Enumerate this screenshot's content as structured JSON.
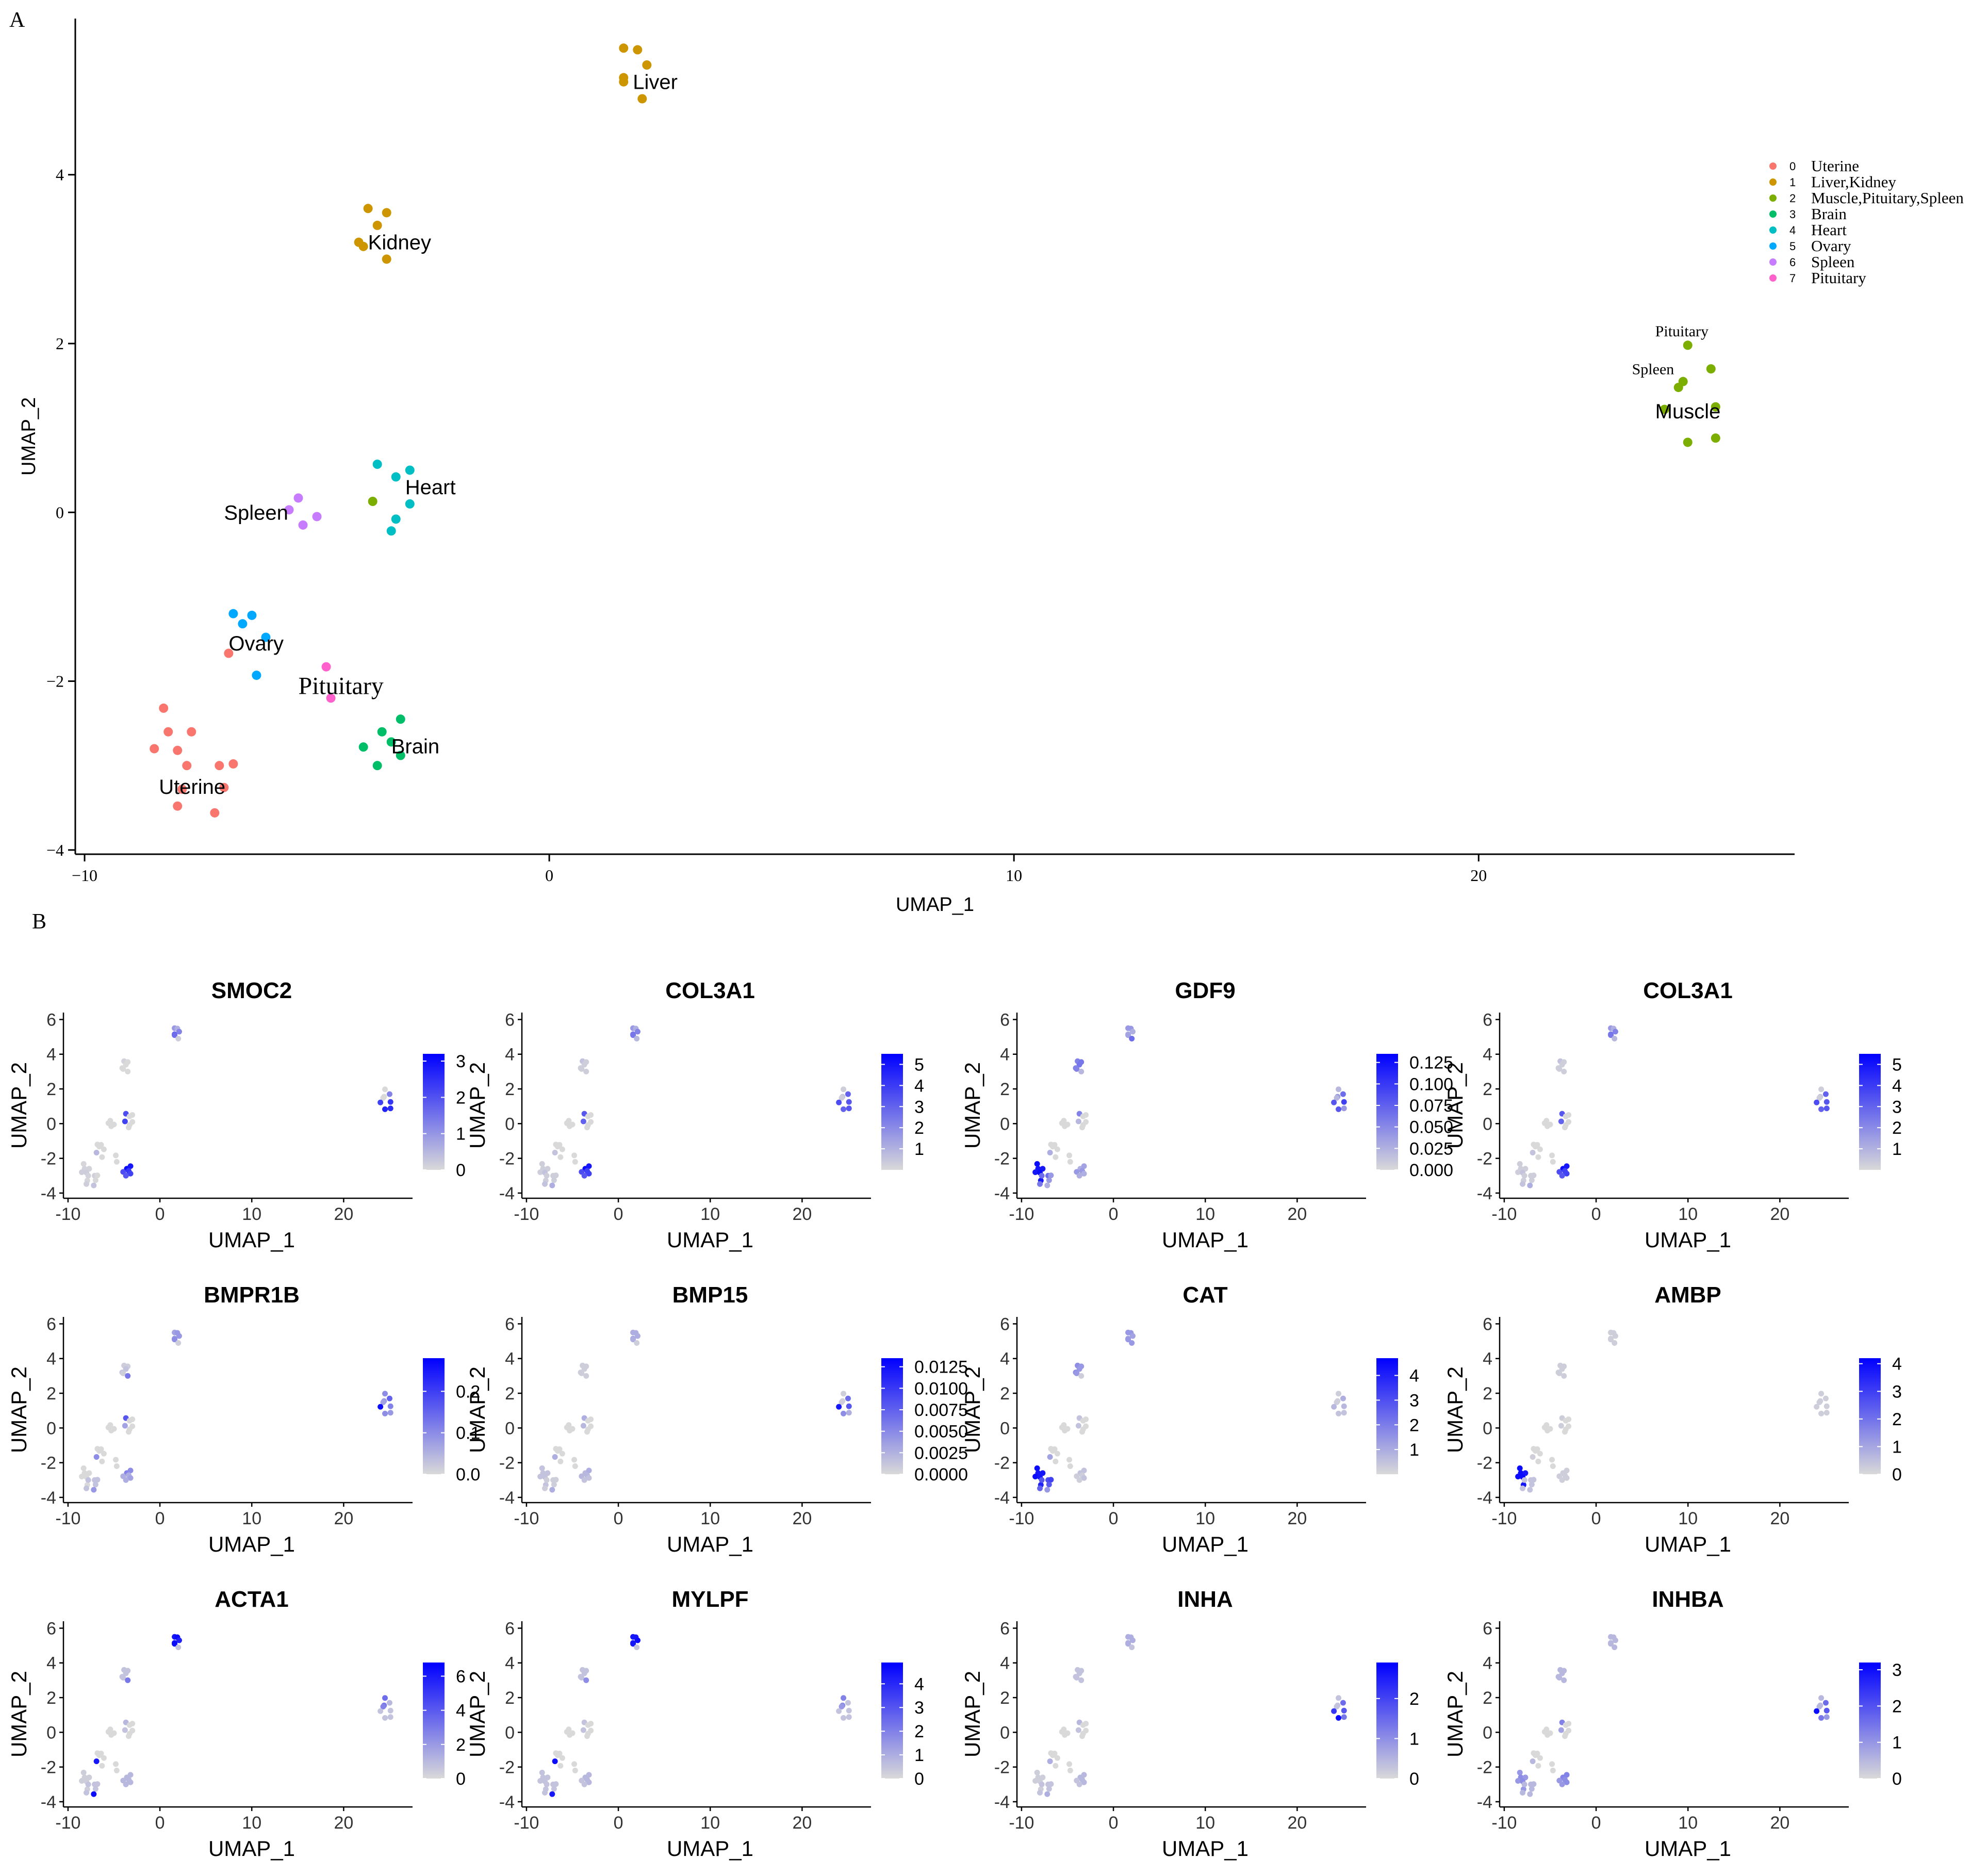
{
  "panel_labels": {
    "a": "A",
    "b": "B"
  },
  "chart_data": [
    {
      "type": "scatter",
      "title": "",
      "xlabel": "UMAP_1",
      "ylabel": "UMAP_2",
      "xlim": [
        -10.2,
        26.8
      ],
      "ylim": [
        -4.05,
        5.85
      ],
      "xticks": [
        -10,
        0,
        10,
        20
      ],
      "yticks": [
        -4,
        -2,
        0,
        2,
        4
      ],
      "xtick_labels": [
        "−10",
        "0",
        "10",
        "20"
      ],
      "ytick_labels": [
        "−4",
        "−2",
        "0",
        "2",
        "4"
      ],
      "grid": false,
      "legend_placement": "right",
      "legend": [
        {
          "num": "0",
          "label": "Uterine",
          "color": "#F8766D"
        },
        {
          "num": "1",
          "label": "Liver,Kidney",
          "color": "#CD9600"
        },
        {
          "num": "2",
          "label": "Muscle,Pituitary,Spleen",
          "color": "#7CAE00"
        },
        {
          "num": "3",
          "label": "Brain",
          "color": "#00BE67"
        },
        {
          "num": "4",
          "label": "Heart",
          "color": "#00BFC4"
        },
        {
          "num": "5",
          "label": "Ovary",
          "color": "#00A9FF"
        },
        {
          "num": "6",
          "label": "Spleen",
          "color": "#C77CFF"
        },
        {
          "num": "7",
          "label": "Pituitary",
          "color": "#FF61CC"
        }
      ],
      "series": [
        {
          "name": "0",
          "points": [
            [
              -8.3,
              -2.32
            ],
            [
              -8.2,
              -2.6
            ],
            [
              -7.7,
              -2.6
            ],
            [
              -8.5,
              -2.8
            ],
            [
              -8.0,
              -2.82
            ],
            [
              -7.9,
              -3.28
            ],
            [
              -7.8,
              -3.0
            ],
            [
              -7.1,
              -3.0
            ],
            [
              -6.8,
              -2.98
            ],
            [
              -7.0,
              -3.26
            ],
            [
              -8.0,
              -3.48
            ],
            [
              -7.2,
              -3.56
            ],
            [
              -6.9,
              -1.67
            ]
          ]
        },
        {
          "name": "1",
          "points": [
            [
              1.6,
              5.5
            ],
            [
              1.9,
              5.48
            ],
            [
              1.6,
              5.15
            ],
            [
              1.6,
              5.1
            ],
            [
              2.1,
              5.3
            ],
            [
              2.0,
              4.9
            ],
            [
              -3.9,
              3.6
            ],
            [
              -3.5,
              3.55
            ],
            [
              -3.7,
              3.4
            ],
            [
              -4.1,
              3.2
            ],
            [
              -4.0,
              3.15
            ],
            [
              -3.5,
              3.0
            ]
          ]
        },
        {
          "name": "2",
          "points": [
            [
              24.5,
              1.98
            ],
            [
              24.4,
              1.55
            ],
            [
              24.3,
              1.48
            ],
            [
              25.0,
              1.7
            ],
            [
              24.0,
              1.22
            ],
            [
              25.1,
              1.25
            ],
            [
              24.5,
              0.83
            ],
            [
              25.1,
              0.88
            ],
            [
              -3.8,
              0.13
            ]
          ]
        },
        {
          "name": "3",
          "points": [
            [
              -3.6,
              -2.6
            ],
            [
              -3.2,
              -2.45
            ],
            [
              -3.4,
              -2.72
            ],
            [
              -4.0,
              -2.78
            ],
            [
              -3.2,
              -2.88
            ],
            [
              -3.7,
              -3.0
            ]
          ]
        },
        {
          "name": "4",
          "points": [
            [
              -3.7,
              0.57
            ],
            [
              -3.3,
              0.42
            ],
            [
              -3.0,
              0.5
            ],
            [
              -3.0,
              0.1
            ],
            [
              -3.3,
              -0.08
            ],
            [
              -3.4,
              -0.22
            ]
          ]
        },
        {
          "name": "5",
          "points": [
            [
              -6.8,
              -1.2
            ],
            [
              -6.6,
              -1.32
            ],
            [
              -6.4,
              -1.22
            ],
            [
              -6.1,
              -1.48
            ],
            [
              -6.3,
              -1.93
            ]
          ]
        },
        {
          "name": "6",
          "points": [
            [
              -5.4,
              0.17
            ],
            [
              -5.6,
              0.03
            ],
            [
              -5.0,
              -0.05
            ],
            [
              -5.3,
              -0.15
            ]
          ]
        },
        {
          "name": "7",
          "points": [
            [
              -4.8,
              -1.83
            ],
            [
              -4.7,
              -2.2
            ]
          ]
        }
      ],
      "annotations": [
        {
          "text": "Liver",
          "x": 1.8,
          "y": 5.1,
          "font": "sans"
        },
        {
          "text": "Kidney",
          "x": -3.9,
          "y": 3.2,
          "font": "sans"
        },
        {
          "text": "Heart",
          "x": -3.1,
          "y": 0.3,
          "font": "sans"
        },
        {
          "text": "Spleen",
          "x": -7.0,
          "y": 0.0,
          "font": "sans"
        },
        {
          "text": "Ovary",
          "x": -6.9,
          "y": -1.55,
          "font": "sans"
        },
        {
          "text": "Pituitary",
          "x": -5.4,
          "y": -2.05,
          "font": "serif"
        },
        {
          "text": "Brain",
          "x": -3.4,
          "y": -2.77,
          "font": "sans"
        },
        {
          "text": "Uterine",
          "x": -8.4,
          "y": -3.25,
          "font": "sans"
        },
        {
          "text": "Muscle",
          "x": 23.8,
          "y": 1.2,
          "font": "sans"
        },
        {
          "text": "Pituitary",
          "x": 23.8,
          "y": 2.15,
          "font": "serif-small"
        },
        {
          "text": "Spleen",
          "x": 23.3,
          "y": 1.7,
          "font": "serif-small"
        }
      ]
    },
    {
      "type": "scatter",
      "title": "SMOC2",
      "xlabel": "UMAP_1",
      "ylabel": "UMAP_2",
      "scale_max": 3.2,
      "colorbar_ticks": [
        0,
        1,
        2,
        3
      ],
      "colorbar_labels": [
        "0",
        "1",
        "2",
        "3"
      ],
      "levels": [
        0.02,
        0.03,
        0.03,
        0.05,
        0.06,
        0.02,
        0.03,
        0.04,
        0.0,
        0.01,
        0.05,
        0.1,
        0.15,
        0.3,
        0.2,
        0.55,
        0.5,
        0.4,
        0.05,
        0.03,
        0.0,
        0.0,
        0.0,
        0.0,
        0.0,
        0.0,
        0.0,
        0.0,
        0.4,
        0.7,
        0.75,
        0.85,
        0.8,
        0.7,
        0.95,
        0.9,
        0.75,
        0.65,
        0.7,
        0.6,
        0.65
      ]
    },
    {
      "type": "scatter",
      "title": "COL3A1",
      "xlabel": "UMAP_1",
      "ylabel": "UMAP_2",
      "scale_max": 5.5,
      "colorbar_ticks": [
        1,
        2,
        3,
        4,
        5
      ],
      "colorbar_labels": [
        "1",
        "2",
        "3",
        "4",
        "5"
      ],
      "levels": [
        0.05,
        0.05,
        0.05,
        0.05,
        0.1,
        0.05,
        0.05,
        0.05,
        0.05,
        0.05,
        0.1,
        0.2,
        0.1,
        0.3,
        0.2,
        0.45,
        0.45,
        0.4,
        0.15,
        0.1,
        0.05,
        0.05,
        0.05,
        0.05,
        0.05,
        0.05,
        0.1,
        0.05,
        0.55,
        0.65,
        0.6,
        0.55,
        0.6,
        0.55,
        0.95,
        0.9,
        0.7,
        0.65,
        0.7,
        0.6,
        0.6
      ]
    },
    {
      "type": "scatter",
      "title": "GDF9",
      "xlabel": "UMAP_1",
      "ylabel": "UMAP_2",
      "scale_max": 0.135,
      "colorbar_ticks": [
        0,
        0.025,
        0.05,
        0.075,
        0.1,
        0.125
      ],
      "colorbar_labels": [
        "0.000",
        "0.025",
        "0.050",
        "0.075",
        "0.100",
        "0.125"
      ],
      "levels": [
        0.95,
        0.9,
        0.9,
        0.9,
        0.95,
        0.9,
        0.5,
        0.5,
        0.3,
        0.3,
        0.45,
        0.2,
        0.2,
        0.3,
        0.3,
        0.2,
        0.25,
        0.2,
        0.5,
        0.4,
        0.45,
        0.45,
        0.4,
        0.4,
        0.15,
        0.15,
        0.3,
        0.15,
        0.5,
        0.6,
        0.7,
        0.6,
        0.3,
        0.15,
        0.2,
        0.25,
        0.3,
        0.3,
        0.2,
        0.2,
        0.4
      ]
    },
    {
      "type": "scatter",
      "title": "COL3A1",
      "xlabel": "UMAP_1",
      "ylabel": "UMAP_2",
      "scale_max": 5.5,
      "colorbar_ticks": [
        1,
        2,
        3,
        4,
        5
      ],
      "colorbar_labels": [
        "1",
        "2",
        "3",
        "4",
        "5"
      ],
      "levels": [
        0.05,
        0.05,
        0.05,
        0.05,
        0.1,
        0.05,
        0.05,
        0.05,
        0.05,
        0.05,
        0.1,
        0.2,
        0.1,
        0.3,
        0.2,
        0.45,
        0.45,
        0.4,
        0.15,
        0.1,
        0.05,
        0.05,
        0.05,
        0.05,
        0.05,
        0.05,
        0.1,
        0.05,
        0.55,
        0.65,
        0.6,
        0.55,
        0.6,
        0.55,
        0.95,
        0.9,
        0.7,
        0.65,
        0.7,
        0.6,
        0.6
      ]
    },
    {
      "type": "scatter",
      "title": "BMPR1B",
      "xlabel": "UMAP_1",
      "ylabel": "UMAP_2",
      "scale_max": 0.28,
      "colorbar_ticks": [
        0,
        0.1,
        0.2
      ],
      "colorbar_labels": [
        "0.0",
        "0.1",
        "0.2"
      ],
      "levels": [
        0.0,
        0.0,
        0.0,
        0.0,
        0.0,
        0.0,
        0.1,
        0.1,
        0.1,
        0.1,
        0.1,
        0.3,
        0.35,
        0.25,
        0.3,
        0.3,
        0.35,
        0.3,
        0.05,
        0.05,
        0.05,
        0.1,
        0.1,
        0.05,
        0.45,
        0.35,
        0.3,
        0.25,
        0.55,
        0.95,
        0.4,
        0.35,
        0.3,
        0.25,
        0.4,
        0.35,
        0.2,
        0.2,
        0.25,
        0.2,
        0.6
      ]
    },
    {
      "type": "scatter",
      "title": "BMP15",
      "xlabel": "UMAP_1",
      "ylabel": "UMAP_2",
      "scale_max": 0.0135,
      "colorbar_ticks": [
        0,
        0.0025,
        0.005,
        0.0075,
        0.01,
        0.0125
      ],
      "colorbar_labels": [
        "0.0000",
        "0.0025",
        "0.0050",
        "0.0075",
        "0.0100",
        "0.0125"
      ],
      "levels": [
        0.1,
        0.1,
        0.1,
        0.1,
        0.1,
        0.1,
        0.05,
        0.05,
        0.05,
        0.05,
        0.05,
        0.2,
        0.2,
        0.2,
        0.2,
        0.25,
        0.2,
        0.2,
        0.05,
        0.05,
        0.05,
        0.05,
        0.05,
        0.05,
        0.05,
        0.05,
        0.05,
        0.05,
        0.5,
        0.9,
        0.6,
        0.35,
        0.2,
        0.15,
        0.15,
        0.2,
        0.15,
        0.15,
        0.1,
        0.1,
        0.2
      ]
    },
    {
      "type": "scatter",
      "title": "CAT",
      "xlabel": "UMAP_1",
      "ylabel": "UMAP_2",
      "scale_max": 4.7,
      "colorbar_ticks": [
        1,
        2,
        3,
        4
      ],
      "colorbar_labels": [
        "1",
        "2",
        "3",
        "4"
      ],
      "levels": [
        0.95,
        0.9,
        0.9,
        0.95,
        0.9,
        0.85,
        0.6,
        0.65,
        0.7,
        0.6,
        0.55,
        0.3,
        0.25,
        0.3,
        0.3,
        0.25,
        0.3,
        0.25,
        0.3,
        0.35,
        0.3,
        0.3,
        0.35,
        0.3,
        0.05,
        0.05,
        0.05,
        0.05,
        0.2,
        0.15,
        0.15,
        0.1,
        0.1,
        0.1,
        0.1,
        0.1,
        0.05,
        0.05,
        0.1,
        0.05,
        0.1
      ]
    },
    {
      "type": "scatter",
      "title": "AMBP",
      "xlabel": "UMAP_1",
      "ylabel": "UMAP_2",
      "scale_max": 4.2,
      "colorbar_ticks": [
        0,
        1,
        2,
        3,
        4
      ],
      "colorbar_labels": [
        "0",
        "1",
        "2",
        "3",
        "4"
      ],
      "levels": [
        0.95,
        0.95,
        0.9,
        0.95,
        0.95,
        0.9,
        0.1,
        0.1,
        0.1,
        0.1,
        0.1,
        0.1,
        0.05,
        0.05,
        0.05,
        0.05,
        0.05,
        0.05,
        0.05,
        0.05,
        0.05,
        0.05,
        0.05,
        0.05,
        0.05,
        0.05,
        0.05,
        0.05,
        0.05,
        0.05,
        0.05,
        0.05,
        0.05,
        0.05,
        0.05,
        0.05,
        0.05,
        0.05,
        0.05,
        0.05,
        0.05
      ]
    },
    {
      "type": "scatter",
      "title": "ACTA1",
      "xlabel": "UMAP_1",
      "ylabel": "UMAP_2",
      "scale_max": 6.8,
      "colorbar_ticks": [
        0,
        2,
        4,
        6
      ],
      "colorbar_labels": [
        "0",
        "2",
        "4",
        "6"
      ],
      "levels": [
        0.05,
        0.05,
        0.05,
        0.05,
        0.05,
        0.05,
        0.1,
        0.1,
        0.1,
        0.1,
        0.1,
        0.95,
        0.9,
        0.9,
        0.95,
        0.9,
        0.95,
        0.85,
        0.1,
        0.1,
        0.1,
        0.1,
        0.1,
        0.1,
        0.45,
        0.5,
        0.45,
        0.4,
        0.15,
        0.1,
        0.1,
        0.1,
        0.1,
        0.1,
        0.15,
        0.15,
        0.15,
        0.15,
        0.15,
        0.15,
        0.15
      ]
    },
    {
      "type": "scatter",
      "title": "MYLPF",
      "xlabel": "UMAP_1",
      "ylabel": "UMAP_2",
      "scale_max": 4.9,
      "colorbar_ticks": [
        0,
        1,
        2,
        3,
        4
      ],
      "colorbar_labels": [
        "0",
        "1",
        "2",
        "3",
        "4"
      ],
      "levels": [
        0.1,
        0.1,
        0.1,
        0.1,
        0.1,
        0.1,
        0.1,
        0.1,
        0.1,
        0.1,
        0.1,
        0.9,
        0.95,
        0.9,
        0.9,
        0.85,
        0.9,
        0.95,
        0.1,
        0.1,
        0.1,
        0.1,
        0.1,
        0.1,
        0.35,
        0.4,
        0.35,
        0.3,
        0.1,
        0.1,
        0.1,
        0.1,
        0.1,
        0.1,
        0.15,
        0.15,
        0.15,
        0.1,
        0.15,
        0.1,
        0.1
      ]
    },
    {
      "type": "scatter",
      "title": "INHA",
      "xlabel": "UMAP_1",
      "ylabel": "UMAP_2",
      "scale_max": 2.9,
      "colorbar_ticks": [
        0,
        1,
        2
      ],
      "colorbar_labels": [
        "0",
        "1",
        "2"
      ],
      "levels": [
        0.05,
        0.05,
        0.05,
        0.05,
        0.05,
        0.05,
        0.1,
        0.1,
        0.1,
        0.1,
        0.1,
        0.2,
        0.2,
        0.2,
        0.2,
        0.2,
        0.2,
        0.2,
        0.1,
        0.1,
        0.1,
        0.1,
        0.1,
        0.1,
        0.1,
        0.1,
        0.1,
        0.1,
        0.5,
        0.75,
        0.6,
        0.95,
        0.45,
        0.1,
        0.15,
        0.15,
        0.15,
        0.1,
        0.15,
        0.1,
        0.15
      ]
    },
    {
      "type": "scatter",
      "title": "INHBA",
      "xlabel": "UMAP_1",
      "ylabel": "UMAP_2",
      "scale_max": 3.2,
      "colorbar_ticks": [
        0,
        1,
        2,
        3
      ],
      "colorbar_labels": [
        "0",
        "1",
        "2",
        "3"
      ],
      "levels": [
        0.3,
        0.35,
        0.3,
        0.3,
        0.35,
        0.3,
        0.15,
        0.15,
        0.15,
        0.15,
        0.15,
        0.15,
        0.15,
        0.15,
        0.15,
        0.15,
        0.15,
        0.15,
        0.15,
        0.15,
        0.15,
        0.15,
        0.15,
        0.15,
        0.15,
        0.15,
        0.15,
        0.15,
        0.5,
        0.95,
        0.6,
        0.45,
        0.3,
        0.25,
        0.4,
        0.4,
        0.35,
        0.3,
        0.35,
        0.3,
        0.4
      ]
    }
  ]
}
